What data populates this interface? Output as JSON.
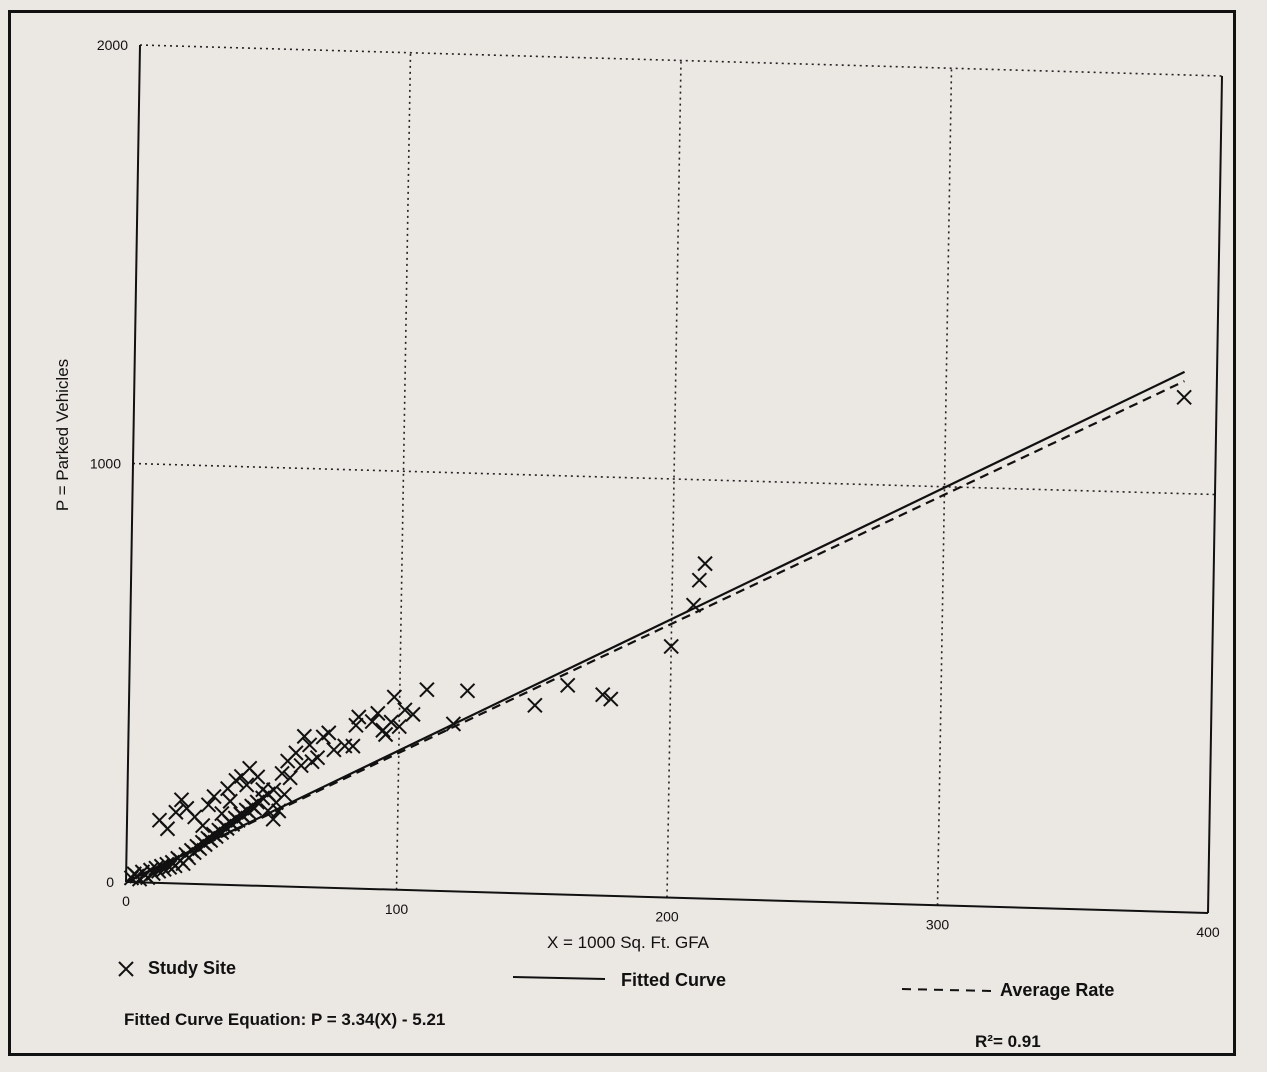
{
  "chart_data": {
    "type": "scatter",
    "xlabel": "X = 1000 Sq. Ft. GFA",
    "ylabel": "P = Parked Vehicles",
    "xlim": [
      0,
      400
    ],
    "ylim": [
      0,
      2000
    ],
    "x_ticks": [
      "0",
      "100",
      "200",
      "300",
      "400"
    ],
    "y_ticks": [
      "0",
      "1000",
      "2000"
    ],
    "grid": true,
    "series": [
      {
        "name": "Study Site",
        "marker": "x",
        "points": [
          [
            2,
            10
          ],
          [
            3,
            20
          ],
          [
            4,
            15
          ],
          [
            5,
            8
          ],
          [
            6,
            25
          ],
          [
            7,
            18
          ],
          [
            8,
            12
          ],
          [
            9,
            30
          ],
          [
            10,
            22
          ],
          [
            11,
            35
          ],
          [
            12,
            28
          ],
          [
            13,
            40
          ],
          [
            14,
            33
          ],
          [
            15,
            45
          ],
          [
            16,
            38
          ],
          [
            17,
            50
          ],
          [
            18,
            42
          ],
          [
            19,
            60
          ],
          [
            20,
            55
          ],
          [
            21,
            48
          ],
          [
            22,
            70
          ],
          [
            23,
            62
          ],
          [
            24,
            80
          ],
          [
            25,
            75
          ],
          [
            26,
            90
          ],
          [
            27,
            85
          ],
          [
            28,
            100
          ],
          [
            29,
            95
          ],
          [
            30,
            110
          ],
          [
            31,
            105
          ],
          [
            32,
            120
          ],
          [
            33,
            115
          ],
          [
            34,
            130
          ],
          [
            35,
            125
          ],
          [
            36,
            140
          ],
          [
            37,
            135
          ],
          [
            38,
            150
          ],
          [
            39,
            145
          ],
          [
            40,
            160
          ],
          [
            41,
            155
          ],
          [
            42,
            170
          ],
          [
            43,
            165
          ],
          [
            44,
            180
          ],
          [
            45,
            175
          ],
          [
            46,
            190
          ],
          [
            47,
            185
          ],
          [
            48,
            200
          ],
          [
            50,
            210
          ],
          [
            52,
            220
          ],
          [
            54,
            230
          ],
          [
            12,
            150
          ],
          [
            15,
            130
          ],
          [
            18,
            170
          ],
          [
            20,
            200
          ],
          [
            22,
            180
          ],
          [
            25,
            160
          ],
          [
            28,
            140
          ],
          [
            30,
            190
          ],
          [
            32,
            210
          ],
          [
            35,
            170
          ],
          [
            37,
            230
          ],
          [
            38,
            200
          ],
          [
            40,
            250
          ],
          [
            42,
            260
          ],
          [
            44,
            240
          ],
          [
            45,
            280
          ],
          [
            48,
            260
          ],
          [
            50,
            230
          ],
          [
            52,
            180
          ],
          [
            54,
            160
          ],
          [
            55,
            200
          ],
          [
            56,
            180
          ],
          [
            57,
            270
          ],
          [
            58,
            220
          ],
          [
            59,
            300
          ],
          [
            60,
            260
          ],
          [
            62,
            320
          ],
          [
            64,
            290
          ],
          [
            65,
            360
          ],
          [
            67,
            340
          ],
          [
            68,
            300
          ],
          [
            70,
            310
          ],
          [
            72,
            360
          ],
          [
            74,
            370
          ],
          [
            76,
            330
          ],
          [
            80,
            340
          ],
          [
            83,
            340
          ],
          [
            84,
            390
          ],
          [
            85,
            410
          ],
          [
            90,
            400
          ],
          [
            92,
            420
          ],
          [
            94,
            380
          ],
          [
            95,
            370
          ],
          [
            97,
            400
          ],
          [
            98,
            460
          ],
          [
            100,
            390
          ],
          [
            102,
            430
          ],
          [
            105,
            420
          ],
          [
            110,
            480
          ],
          [
            120,
            400
          ],
          [
            125,
            480
          ],
          [
            150,
            450
          ],
          [
            162,
            500
          ],
          [
            175,
            480
          ],
          [
            178,
            470
          ],
          [
            200,
            600
          ],
          [
            208,
            700
          ],
          [
            210,
            760
          ],
          [
            212,
            800
          ],
          [
            388,
            1230
          ]
        ]
      }
    ],
    "fitted_curve": {
      "name": "Fitted Curve",
      "slope": 3.34,
      "intercept": -5.21
    },
    "average_rate": {
      "name": "Average Rate",
      "slope": 3.27,
      "intercept": 0
    }
  },
  "legend": {
    "study_site": "Study Site",
    "fitted_curve": "Fitted Curve",
    "average_rate": "Average Rate"
  },
  "footer": {
    "equation": "Fitted Curve Equation: P = 3.34(X) - 5.21",
    "r_squared": "R²= 0.91"
  }
}
